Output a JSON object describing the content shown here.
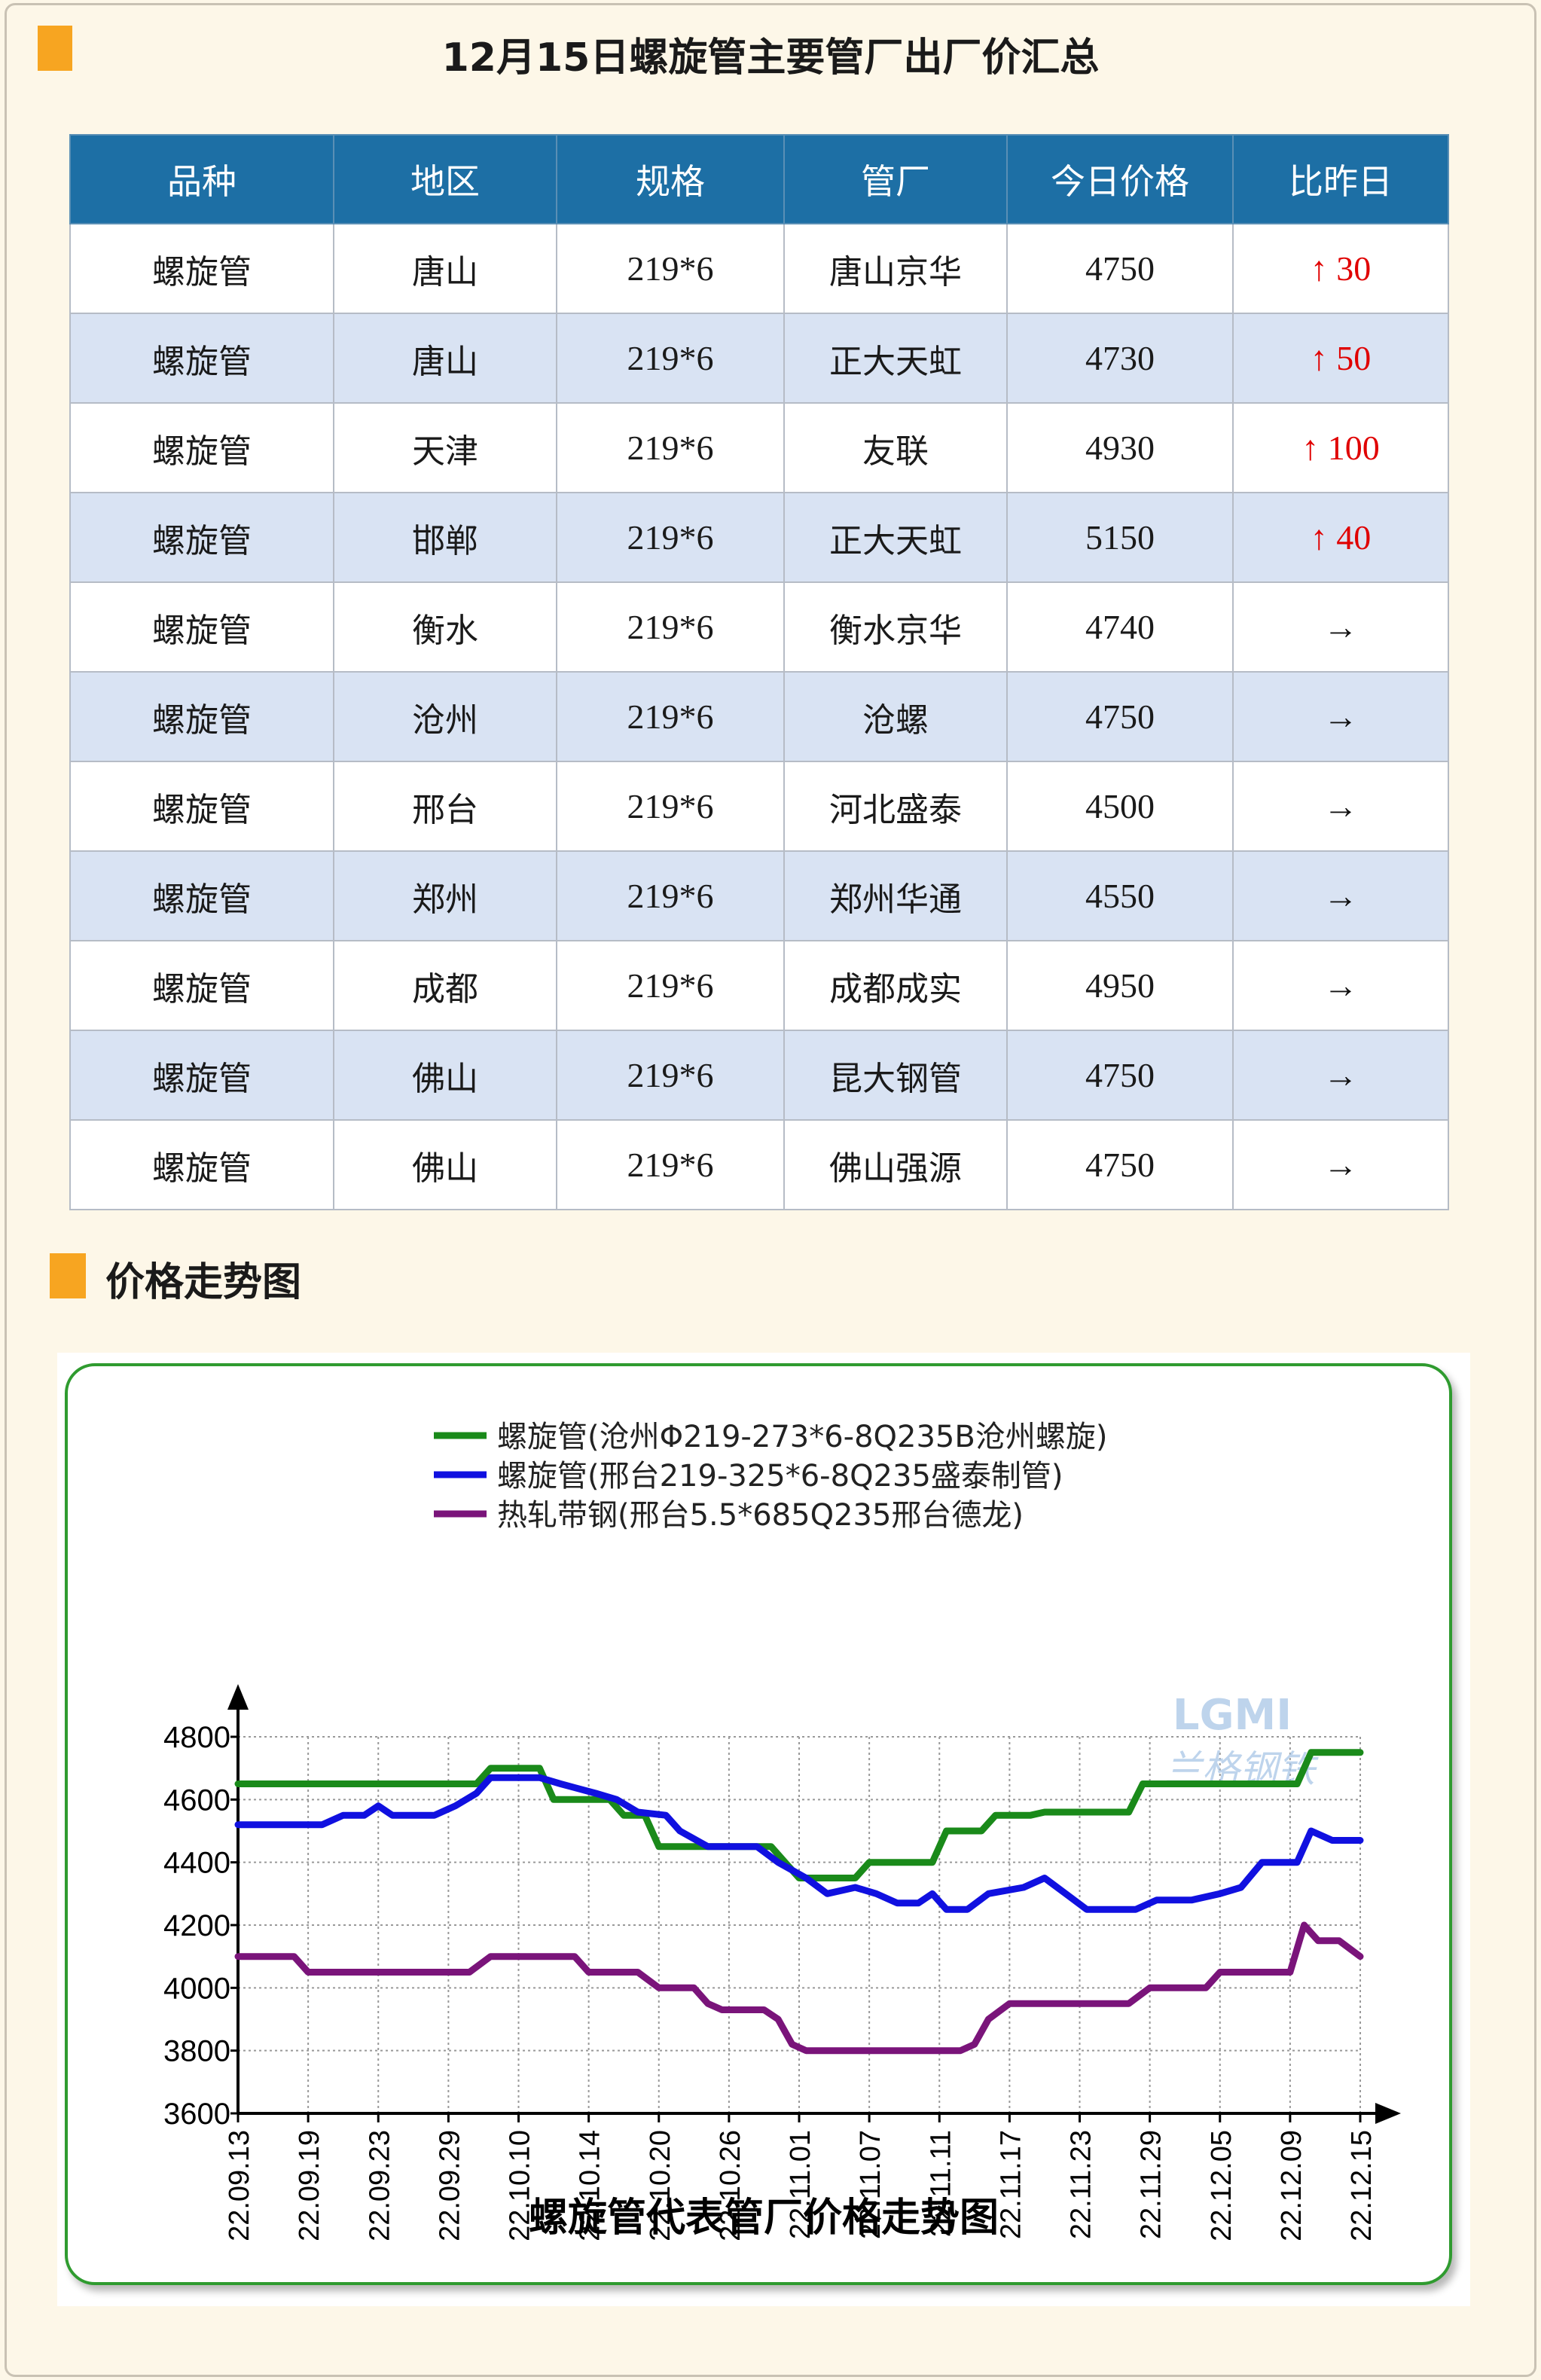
{
  "header": {
    "title": "12月15日螺旋管主要管厂出厂价汇总"
  },
  "table": {
    "columns": [
      "品种",
      "地区",
      "规格",
      "管厂",
      "今日价格",
      "比昨日"
    ],
    "rows": [
      {
        "variety": "螺旋管",
        "region": "唐山",
        "spec": "219*6",
        "mill": "唐山京华",
        "price": "4750",
        "change": "30",
        "dir": "up"
      },
      {
        "variety": "螺旋管",
        "region": "唐山",
        "spec": "219*6",
        "mill": "正大天虹",
        "price": "4730",
        "change": "50",
        "dir": "up"
      },
      {
        "variety": "螺旋管",
        "region": "天津",
        "spec": "219*6",
        "mill": "友联",
        "price": "4930",
        "change": "100",
        "dir": "up"
      },
      {
        "variety": "螺旋管",
        "region": "邯郸",
        "spec": "219*6",
        "mill": "正大天虹",
        "price": "5150",
        "change": "40",
        "dir": "up"
      },
      {
        "variety": "螺旋管",
        "region": "衡水",
        "spec": "219*6",
        "mill": "衡水京华",
        "price": "4740",
        "change": "",
        "dir": "flat"
      },
      {
        "variety": "螺旋管",
        "region": "沧州",
        "spec": "219*6",
        "mill": "沧螺",
        "price": "4750",
        "change": "",
        "dir": "flat"
      },
      {
        "variety": "螺旋管",
        "region": "邢台",
        "spec": "219*6",
        "mill": "河北盛泰",
        "price": "4500",
        "change": "",
        "dir": "flat"
      },
      {
        "variety": "螺旋管",
        "region": "郑州",
        "spec": "219*6",
        "mill": "郑州华通",
        "price": "4550",
        "change": "",
        "dir": "flat"
      },
      {
        "variety": "螺旋管",
        "region": "成都",
        "spec": "219*6",
        "mill": "成都成实",
        "price": "4950",
        "change": "",
        "dir": "flat"
      },
      {
        "variety": "螺旋管",
        "region": "佛山",
        "spec": "219*6",
        "mill": "昆大钢管",
        "price": "4750",
        "change": "",
        "dir": "flat"
      },
      {
        "variety": "螺旋管",
        "region": "佛山",
        "spec": "219*6",
        "mill": "佛山强源",
        "price": "4750",
        "change": "",
        "dir": "flat"
      }
    ],
    "up_arrow": "↑",
    "flat_arrow": "→"
  },
  "section": {
    "title": "价格走势图"
  },
  "colors": {
    "accent": "#f7a521",
    "header_bg": "#1d6fa5",
    "alt_row": "#d9e3f3",
    "up": "#e00000"
  },
  "chart_data": {
    "type": "line",
    "title": "螺旋管代表管厂价格走势图",
    "ylim": [
      3600,
      4800
    ],
    "yticks": [
      3600,
      3800,
      4000,
      4200,
      4400,
      4600,
      4800
    ],
    "x_ticks": [
      "22.09.13",
      "22.09.19",
      "22.09.23",
      "22.09.29",
      "22.10.10",
      "22.10.14",
      "22.10.20",
      "22.10.26",
      "22.11.01",
      "22.11.07",
      "22.11.11",
      "22.11.17",
      "22.11.23",
      "22.11.29",
      "22.12.05",
      "22.12.09",
      "22.12.15"
    ],
    "legend_position": "top",
    "watermark": "LGMI 兰格钢铁",
    "series": [
      {
        "name": "螺旋管(沧州Φ219-273*6-8Q235B沧州螺旋)",
        "color": "#1a8a1a",
        "points": [
          [
            0,
            4650
          ],
          [
            3.4,
            4650
          ],
          [
            3.6,
            4700
          ],
          [
            4.3,
            4700
          ],
          [
            4.5,
            4600
          ],
          [
            5.3,
            4600
          ],
          [
            5.5,
            4550
          ],
          [
            5.8,
            4550
          ],
          [
            6.0,
            4450
          ],
          [
            7.6,
            4450
          ],
          [
            7.8,
            4400
          ],
          [
            8.0,
            4350
          ],
          [
            8.8,
            4350
          ],
          [
            9.0,
            4400
          ],
          [
            9.9,
            4400
          ],
          [
            10.1,
            4500
          ],
          [
            10.6,
            4500
          ],
          [
            10.8,
            4550
          ],
          [
            11.3,
            4550
          ],
          [
            11.5,
            4560
          ],
          [
            12.7,
            4560
          ],
          [
            12.9,
            4650
          ],
          [
            15.1,
            4650
          ],
          [
            15.3,
            4750
          ],
          [
            16,
            4750
          ]
        ]
      },
      {
        "name": "螺旋管(邢台219-325*6-8Q235盛泰制管)",
        "color": "#1010e0",
        "points": [
          [
            0,
            4520
          ],
          [
            1.2,
            4520
          ],
          [
            1.5,
            4550
          ],
          [
            1.8,
            4550
          ],
          [
            2.0,
            4580
          ],
          [
            2.2,
            4550
          ],
          [
            2.8,
            4550
          ],
          [
            3.1,
            4580
          ],
          [
            3.4,
            4620
          ],
          [
            3.6,
            4670
          ],
          [
            4.3,
            4670
          ],
          [
            4.6,
            4650
          ],
          [
            5.1,
            4620
          ],
          [
            5.4,
            4600
          ],
          [
            5.7,
            4560
          ],
          [
            6.1,
            4550
          ],
          [
            6.3,
            4500
          ],
          [
            6.7,
            4450
          ],
          [
            7.4,
            4450
          ],
          [
            7.7,
            4400
          ],
          [
            8.1,
            4350
          ],
          [
            8.4,
            4300
          ],
          [
            8.8,
            4320
          ],
          [
            9.1,
            4300
          ],
          [
            9.4,
            4270
          ],
          [
            9.7,
            4270
          ],
          [
            9.9,
            4300
          ],
          [
            10.1,
            4250
          ],
          [
            10.4,
            4250
          ],
          [
            10.7,
            4300
          ],
          [
            11.2,
            4320
          ],
          [
            11.5,
            4350
          ],
          [
            11.8,
            4300
          ],
          [
            12.1,
            4250
          ],
          [
            12.8,
            4250
          ],
          [
            13.1,
            4280
          ],
          [
            13.6,
            4280
          ],
          [
            14.0,
            4300
          ],
          [
            14.3,
            4320
          ],
          [
            14.6,
            4400
          ],
          [
            15.1,
            4400
          ],
          [
            15.3,
            4500
          ],
          [
            15.6,
            4470
          ],
          [
            16,
            4470
          ]
        ]
      },
      {
        "name": "热轧带钢(邢台5.5*685Q235邢台德龙)",
        "color": "#7a147a",
        "points": [
          [
            0,
            4100
          ],
          [
            0.8,
            4100
          ],
          [
            1.0,
            4050
          ],
          [
            3.3,
            4050
          ],
          [
            3.6,
            4100
          ],
          [
            4.8,
            4100
          ],
          [
            5.0,
            4050
          ],
          [
            5.7,
            4050
          ],
          [
            6.0,
            4000
          ],
          [
            6.5,
            4000
          ],
          [
            6.7,
            3950
          ],
          [
            6.9,
            3930
          ],
          [
            7.5,
            3930
          ],
          [
            7.7,
            3900
          ],
          [
            7.9,
            3820
          ],
          [
            8.1,
            3800
          ],
          [
            10.3,
            3800
          ],
          [
            10.5,
            3820
          ],
          [
            10.7,
            3900
          ],
          [
            11.0,
            3950
          ],
          [
            12.7,
            3950
          ],
          [
            13.0,
            4000
          ],
          [
            13.8,
            4000
          ],
          [
            14.0,
            4050
          ],
          [
            14.8,
            4050
          ],
          [
            15.0,
            4050
          ],
          [
            15.2,
            4200
          ],
          [
            15.4,
            4150
          ],
          [
            15.7,
            4150
          ],
          [
            16,
            4100
          ]
        ]
      }
    ]
  }
}
